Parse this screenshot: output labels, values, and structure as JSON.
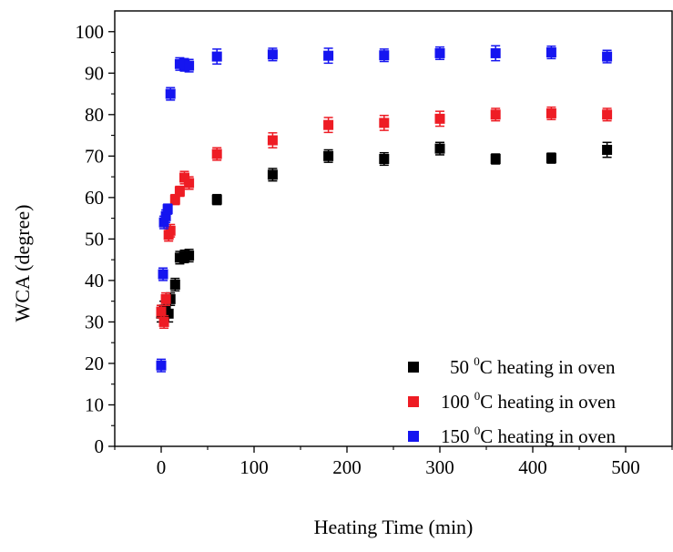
{
  "chart_data": {
    "type": "scatter",
    "title": "",
    "xlabel": "Heating Time (min)",
    "ylabel": "WCA (degree)",
    "xlim": [
      -50,
      550
    ],
    "ylim": [
      0,
      105
    ],
    "x_ticks": [
      0,
      100,
      200,
      300,
      400,
      500
    ],
    "y_ticks": [
      0,
      10,
      20,
      30,
      40,
      50,
      60,
      70,
      80,
      90,
      100
    ],
    "grid": false,
    "legend_position": "bottom-right",
    "series": [
      {
        "name": "50",
        "legend_prefix": "50",
        "legend_sup": "0",
        "legend_suffix": "C heating in oven",
        "color": "#000000",
        "points": [
          {
            "x": 0,
            "y": 32,
            "err": 2
          },
          {
            "x": 3,
            "y": 33,
            "err": 2
          },
          {
            "x": 5,
            "y": 33,
            "err": 2
          },
          {
            "x": 8,
            "y": 32,
            "err": 2
          },
          {
            "x": 10,
            "y": 35.5,
            "err": 1.5
          },
          {
            "x": 15,
            "y": 39,
            "err": 1.5
          },
          {
            "x": 20,
            "y": 45.5,
            "err": 1.5
          },
          {
            "x": 25,
            "y": 45.8,
            "err": 1.5
          },
          {
            "x": 30,
            "y": 46,
            "err": 1.5
          },
          {
            "x": 60,
            "y": 59.5,
            "err": 1.2
          },
          {
            "x": 120,
            "y": 65.5,
            "err": 1.5
          },
          {
            "x": 180,
            "y": 70,
            "err": 1.5
          },
          {
            "x": 240,
            "y": 69.3,
            "err": 1.5
          },
          {
            "x": 300,
            "y": 71.8,
            "err": 1.5
          },
          {
            "x": 360,
            "y": 69.3,
            "err": 1.2
          },
          {
            "x": 420,
            "y": 69.5,
            "err": 1.2
          },
          {
            "x": 480,
            "y": 71.5,
            "err": 1.8
          }
        ]
      },
      {
        "name": "100",
        "legend_prefix": "100",
        "legend_sup": "0",
        "legend_suffix": "C heating in oven",
        "color": "#ee1c24",
        "points": [
          {
            "x": 0,
            "y": 32.5,
            "err": 1.5
          },
          {
            "x": 3,
            "y": 30,
            "err": 1.5
          },
          {
            "x": 5,
            "y": 35.5,
            "err": 1.5
          },
          {
            "x": 8,
            "y": 51,
            "err": 1.5
          },
          {
            "x": 10,
            "y": 52,
            "err": 1.5
          },
          {
            "x": 15,
            "y": 59.5,
            "err": 1.2
          },
          {
            "x": 20,
            "y": 61.5,
            "err": 1.2
          },
          {
            "x": 25,
            "y": 64.8,
            "err": 1.5
          },
          {
            "x": 30,
            "y": 63.5,
            "err": 1.5
          },
          {
            "x": 60,
            "y": 70.5,
            "err": 1.5
          },
          {
            "x": 120,
            "y": 73.8,
            "err": 1.8
          },
          {
            "x": 180,
            "y": 77.5,
            "err": 1.8
          },
          {
            "x": 240,
            "y": 78,
            "err": 1.8
          },
          {
            "x": 300,
            "y": 79,
            "err": 1.8
          },
          {
            "x": 360,
            "y": 80,
            "err": 1.5
          },
          {
            "x": 420,
            "y": 80.3,
            "err": 1.5
          },
          {
            "x": 480,
            "y": 80,
            "err": 1.5
          }
        ]
      },
      {
        "name": "150",
        "legend_prefix": "150",
        "legend_sup": "0",
        "legend_suffix": "C heating in oven",
        "color": "#1515f0",
        "points": [
          {
            "x": 0,
            "y": 19.5,
            "err": 1.5
          },
          {
            "x": 2,
            "y": 41.5,
            "err": 1.5
          },
          {
            "x": 3,
            "y": 54,
            "err": 1.5
          },
          {
            "x": 5,
            "y": 55.5,
            "err": 1.5
          },
          {
            "x": 7,
            "y": 57.2,
            "err": 1.2
          },
          {
            "x": 10,
            "y": 85,
            "err": 1.5
          },
          {
            "x": 20,
            "y": 92.2,
            "err": 1.5
          },
          {
            "x": 25,
            "y": 92,
            "err": 1.5
          },
          {
            "x": 30,
            "y": 91.8,
            "err": 1.5
          },
          {
            "x": 60,
            "y": 94,
            "err": 1.8
          },
          {
            "x": 120,
            "y": 94.5,
            "err": 1.5
          },
          {
            "x": 180,
            "y": 94.2,
            "err": 1.8
          },
          {
            "x": 240,
            "y": 94.3,
            "err": 1.5
          },
          {
            "x": 300,
            "y": 94.8,
            "err": 1.5
          },
          {
            "x": 360,
            "y": 94.8,
            "err": 1.8
          },
          {
            "x": 420,
            "y": 95,
            "err": 1.5
          },
          {
            "x": 480,
            "y": 94,
            "err": 1.5
          }
        ]
      }
    ]
  }
}
